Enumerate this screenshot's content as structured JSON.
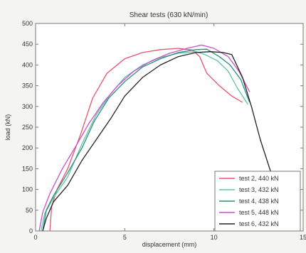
{
  "chart_data": {
    "type": "line",
    "title": "Shear tests (630 kN/min)",
    "xlabel": "displacement (mm)",
    "ylabel": "load (kN)",
    "xlim": [
      0,
      15
    ],
    "ylim": [
      0,
      500
    ],
    "xticks": [
      0,
      5,
      10,
      15
    ],
    "yticks": [
      0,
      50,
      100,
      150,
      200,
      250,
      300,
      350,
      400,
      450,
      500
    ],
    "grid": false,
    "legend_position": "bottom-right",
    "series": [
      {
        "name": "test 2, 440 kN",
        "color": "#e8536d",
        "x": [
          0.8,
          0.9,
          1.2,
          1.8,
          2.5,
          3.2,
          4.0,
          5.0,
          6.0,
          7.0,
          8.0,
          8.8,
          9.2,
          9.6,
          10.3,
          11.0,
          11.6
        ],
        "y": [
          0,
          60,
          100,
          150,
          230,
          320,
          380,
          415,
          430,
          437,
          440,
          436,
          420,
          380,
          350,
          325,
          310
        ]
      },
      {
        "name": "test 3, 432 kN",
        "color": "#5fc3a6",
        "x": [
          0.3,
          0.5,
          1.0,
          1.8,
          2.6,
          3.4,
          4.2,
          5.0,
          6.0,
          7.0,
          8.0,
          9.0,
          9.5,
          10.2,
          10.8,
          11.3,
          11.9
        ],
        "y": [
          0,
          40,
          80,
          130,
          210,
          280,
          330,
          370,
          400,
          418,
          428,
          432,
          425,
          410,
          385,
          345,
          305
        ]
      },
      {
        "name": "test 4, 438 kN",
        "color": "#2f8d80",
        "x": [
          0.4,
          0.6,
          1.0,
          1.8,
          2.6,
          3.3,
          4.1,
          5.0,
          6.0,
          7.0,
          8.0,
          9.0,
          9.6,
          10.3,
          10.9,
          11.5,
          12.0
        ],
        "y": [
          0,
          50,
          85,
          140,
          200,
          265,
          320,
          360,
          395,
          415,
          430,
          437,
          438,
          420,
          400,
          365,
          310
        ]
      },
      {
        "name": "test 5, 448 kN",
        "color": "#c84fd0",
        "x": [
          0.2,
          0.4,
          0.8,
          1.5,
          2.2,
          3.0,
          3.8,
          4.6,
          5.5,
          6.5,
          7.5,
          8.5,
          9.3,
          10.0,
          10.8,
          11.4,
          12.0
        ],
        "y": [
          0,
          45,
          90,
          150,
          200,
          260,
          310,
          350,
          385,
          410,
          428,
          440,
          448,
          440,
          420,
          385,
          335
        ]
      },
      {
        "name": "test 6, 432 kN",
        "color": "#222222",
        "x": [
          0.4,
          0.6,
          1.0,
          1.8,
          2.6,
          3.4,
          4.2,
          5.0,
          6.0,
          7.0,
          8.0,
          9.0,
          9.8,
          10.5,
          11.0,
          11.6,
          12.1,
          12.6,
          13.2,
          13.8
        ],
        "y": [
          0,
          30,
          70,
          110,
          170,
          220,
          270,
          325,
          370,
          400,
          420,
          430,
          432,
          430,
          425,
          370,
          300,
          220,
          140,
          70
        ]
      }
    ]
  }
}
